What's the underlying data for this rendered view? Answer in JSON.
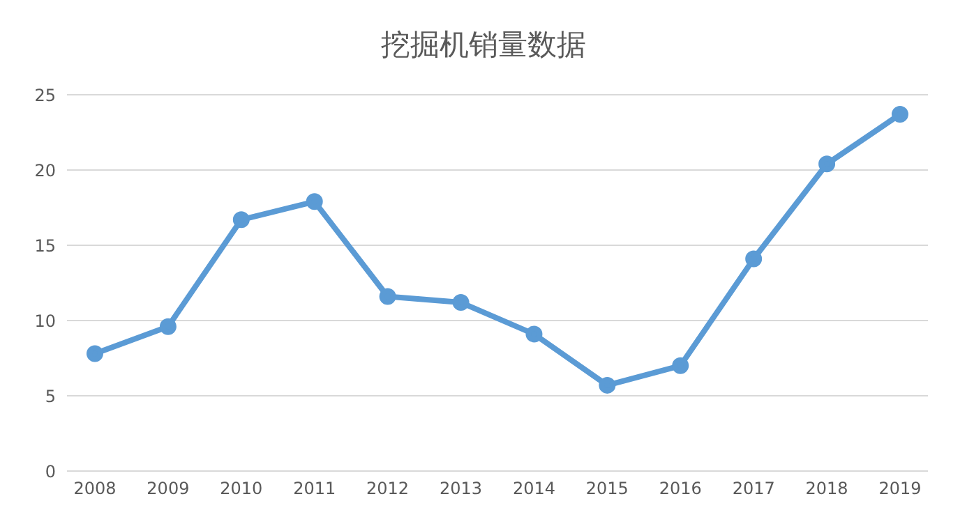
{
  "chart_data": {
    "type": "line",
    "title": "挖掘机销量数据",
    "categories": [
      "2008",
      "2009",
      "2010",
      "2011",
      "2012",
      "2013",
      "2014",
      "2015",
      "2016",
      "2017",
      "2018",
      "2019"
    ],
    "series": [
      {
        "color": "#5b9bd5",
        "values": [
          7.8,
          9.6,
          16.7,
          17.9,
          11.6,
          11.2,
          9.1,
          5.7,
          7.0,
          14.1,
          20.4,
          23.7
        ]
      }
    ],
    "ylim": [
      0,
      25
    ],
    "yticks": [
      0,
      5,
      10,
      15,
      20,
      25
    ],
    "grid": "y",
    "marker": "circle",
    "line_style": "solid"
  }
}
